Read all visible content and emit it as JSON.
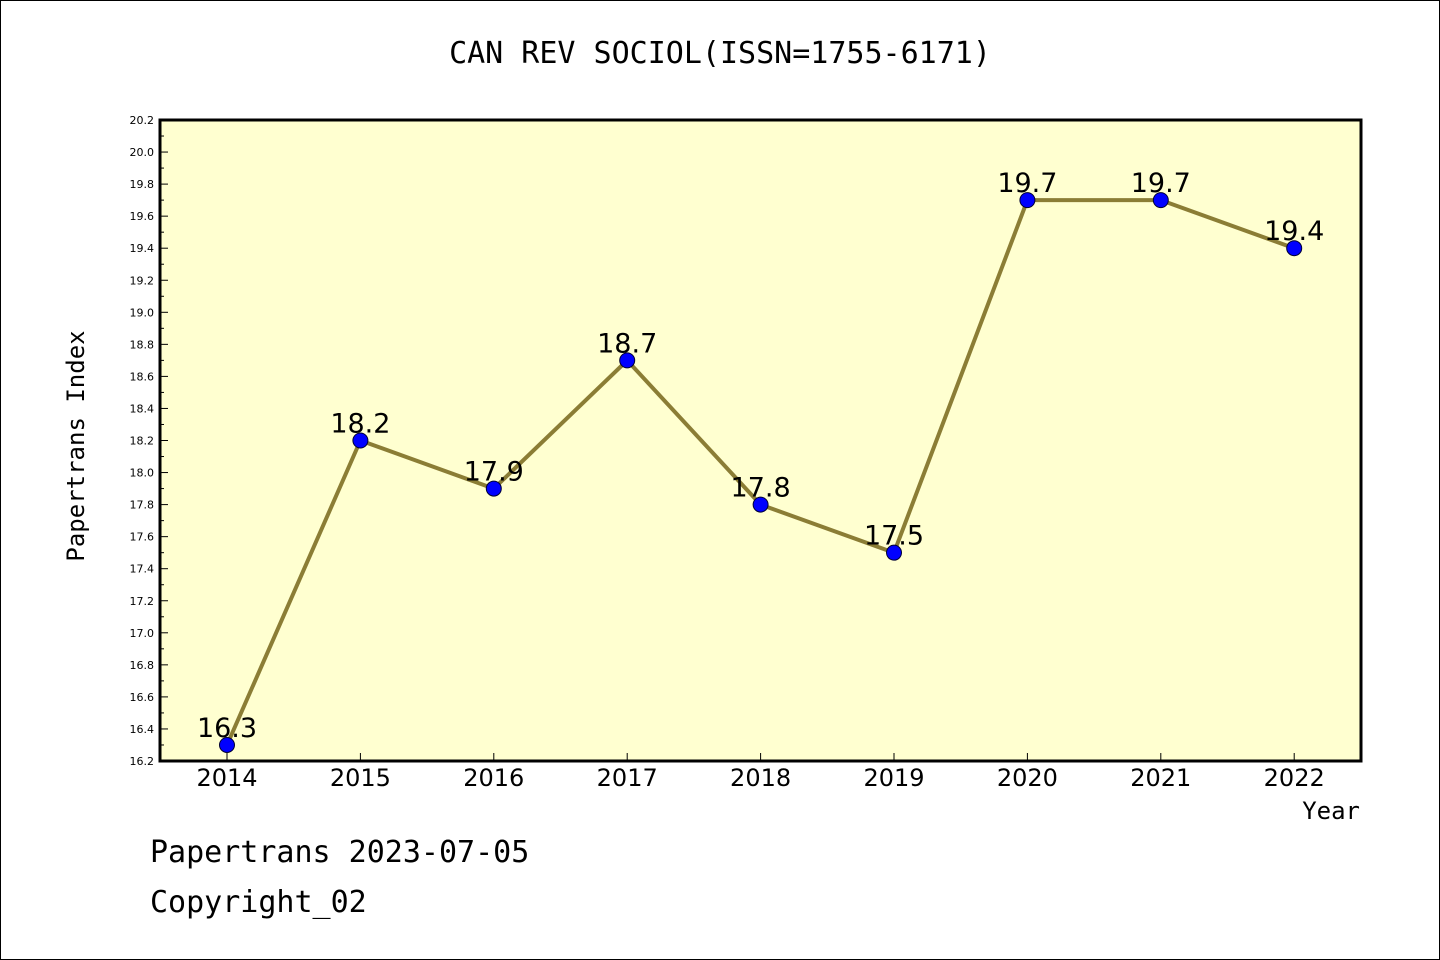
{
  "chart_data": {
    "type": "line",
    "title": "CAN REV SOCIOL(ISSN=1755-6171)",
    "xlabel": "Year",
    "ylabel": "Papertrans Index",
    "categories": [
      "2014",
      "2015",
      "2016",
      "2017",
      "2018",
      "2019",
      "2020",
      "2021",
      "2022"
    ],
    "series": [
      {
        "values": [
          16.3,
          18.2,
          17.9,
          18.7,
          17.8,
          17.5,
          19.7,
          19.7,
          19.4
        ]
      }
    ],
    "data_labels": [
      "16.3",
      "18.2",
      "17.9",
      "18.7",
      "17.8",
      "17.5",
      "19.7",
      "19.7",
      "19.4"
    ],
    "ylim": [
      16.2,
      20.2
    ],
    "yticks": [
      "16.2",
      "16.4",
      "16.6",
      "16.8",
      "17.0",
      "17.2",
      "17.4",
      "17.6",
      "17.8",
      "18.0",
      "18.2",
      "18.4",
      "18.6",
      "18.8",
      "19.0",
      "19.2",
      "19.4",
      "19.6",
      "19.8",
      "20.0",
      "20.2"
    ],
    "grid": false,
    "legend": "none",
    "colors": {
      "plot_background": "#ffffd0",
      "line": "#8b7d35",
      "marker": "#0000ff"
    }
  },
  "footer": {
    "line1": "Papertrans 2023-07-05",
    "line2": "Copyright_02"
  }
}
